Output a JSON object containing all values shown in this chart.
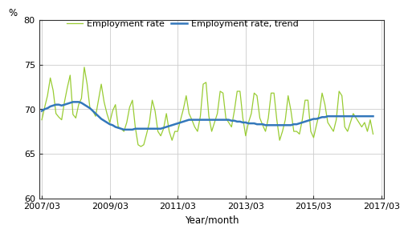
{
  "ylabel": "%",
  "xlabel": "Year/month",
  "ylim": [
    60,
    80
  ],
  "yticks": [
    60,
    65,
    70,
    75,
    80
  ],
  "xtick_labels": [
    "2007/03",
    "2009/03",
    "2011/03",
    "2013/03",
    "2015/03",
    "2017/03"
  ],
  "legend_labels": [
    "Employment rate",
    "Employment rate, trend"
  ],
  "line_color_emp": "#99cc33",
  "line_color_trend": "#3377bb",
  "background_color": "#ffffff",
  "grid_color": "#cccccc",
  "emp_rate": [
    68.8,
    70.2,
    71.5,
    73.5,
    72.1,
    69.5,
    69.1,
    68.8,
    70.8,
    72.4,
    73.8,
    69.4,
    69.0,
    70.5,
    71.2,
    74.7,
    72.8,
    70.1,
    69.8,
    69.2,
    71.0,
    72.8,
    70.8,
    69.5,
    68.5,
    69.8,
    70.5,
    68.0,
    67.8,
    67.5,
    68.5,
    70.2,
    71.0,
    68.0,
    66.0,
    65.8,
    66.0,
    67.2,
    68.5,
    71.0,
    69.8,
    67.5,
    67.0,
    67.8,
    69.5,
    67.5,
    66.5,
    67.5,
    67.5,
    68.8,
    70.0,
    71.5,
    69.5,
    68.8,
    68.0,
    67.5,
    69.2,
    72.8,
    73.0,
    69.2,
    67.5,
    68.5,
    69.5,
    72.0,
    71.8,
    69.0,
    68.5,
    68.0,
    69.8,
    72.0,
    72.0,
    69.0,
    67.0,
    68.5,
    69.5,
    71.8,
    71.5,
    69.0,
    68.2,
    67.5,
    69.0,
    71.8,
    71.8,
    68.8,
    66.5,
    67.5,
    68.8,
    71.5,
    69.8,
    67.5,
    67.5,
    67.2,
    68.8,
    71.0,
    71.0,
    67.5,
    66.8,
    68.2,
    69.5,
    71.8,
    70.5,
    68.5,
    68.0,
    67.5,
    68.8,
    72.0,
    71.5,
    68.0,
    67.5,
    68.5,
    69.5,
    69.0,
    68.5,
    68.0,
    68.5,
    67.5,
    68.8,
    67.2
  ],
  "trend": [
    69.8,
    70.0,
    70.1,
    70.3,
    70.4,
    70.5,
    70.5,
    70.4,
    70.5,
    70.6,
    70.7,
    70.8,
    70.8,
    70.8,
    70.7,
    70.5,
    70.3,
    70.1,
    69.8,
    69.5,
    69.2,
    68.9,
    68.7,
    68.5,
    68.3,
    68.2,
    68.0,
    67.9,
    67.8,
    67.7,
    67.7,
    67.7,
    67.7,
    67.8,
    67.8,
    67.8,
    67.8,
    67.8,
    67.8,
    67.8,
    67.8,
    67.8,
    67.8,
    67.9,
    68.0,
    68.1,
    68.2,
    68.3,
    68.4,
    68.5,
    68.6,
    68.7,
    68.8,
    68.8,
    68.8,
    68.8,
    68.8,
    68.8,
    68.8,
    68.8,
    68.8,
    68.8,
    68.8,
    68.8,
    68.8,
    68.8,
    68.8,
    68.7,
    68.7,
    68.6,
    68.6,
    68.5,
    68.5,
    68.4,
    68.4,
    68.4,
    68.3,
    68.3,
    68.3,
    68.2,
    68.2,
    68.2,
    68.2,
    68.2,
    68.2,
    68.2,
    68.2,
    68.2,
    68.2,
    68.3,
    68.3,
    68.4,
    68.5,
    68.6,
    68.7,
    68.8,
    68.9,
    68.9,
    69.0,
    69.1,
    69.1,
    69.2,
    69.2,
    69.2,
    69.2,
    69.2,
    69.2,
    69.2,
    69.2,
    69.2,
    69.2,
    69.2,
    69.2,
    69.2,
    69.2,
    69.2,
    69.2,
    69.2
  ]
}
